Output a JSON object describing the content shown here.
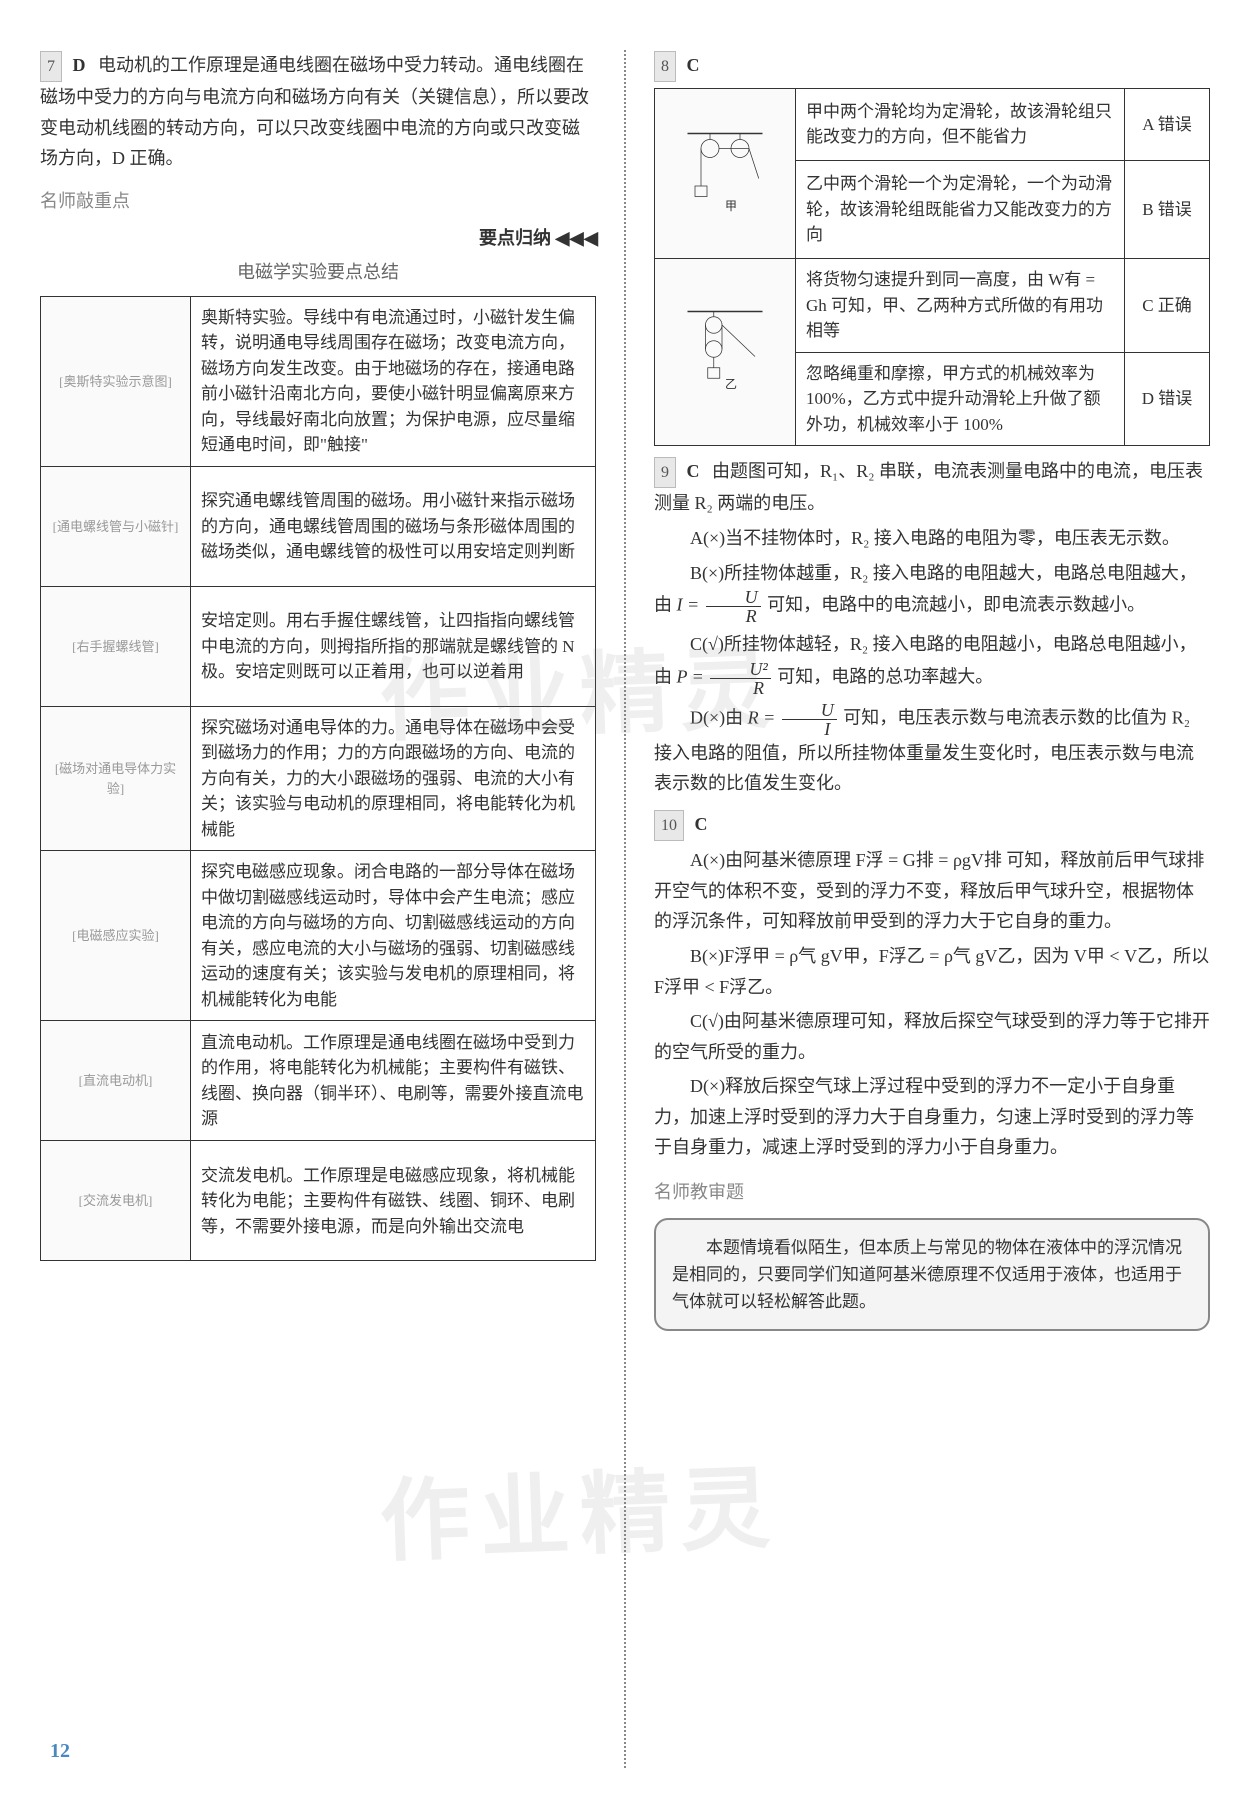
{
  "pageNumber": "12",
  "watermark": "作业精灵",
  "left": {
    "q7": {
      "num": "7",
      "ans": "D",
      "text": "电动机的工作原理是通电线圈在磁场中受力转动。通电线圈在磁场中受力的方向与电流方向和磁场方向有关（关键信息），所以要改变电动机线圈的转动方向，可以只改变线圈中电流的方向或只改变磁场方向，D 正确。"
    },
    "sectionLabel": "名师敲重点",
    "summaryLabel": "要点归纳",
    "arrows": "◀ ◀ ◀",
    "tableTitle": "电磁学实验要点总结",
    "rows": [
      {
        "imgAlt": "奥斯特实验示意图",
        "text": "奥斯特实验。导线中有电流通过时，小磁针发生偏转，说明通电导线周围存在磁场；改变电流方向，磁场方向发生改变。由于地磁场的存在，接通电路前小磁针沿南北方向，要使小磁针明显偏离原来方向，导线最好南北向放置；为保护电源，应尽量缩短通电时间，即\"触接\""
      },
      {
        "imgAlt": "通电螺线管与小磁针",
        "text": "探究通电螺线管周围的磁场。用小磁针来指示磁场的方向，通电螺线管周围的磁场与条形磁体周围的磁场类似，通电螺线管的极性可以用安培定则判断"
      },
      {
        "imgAlt": "右手握螺线管",
        "text": "安培定则。用右手握住螺线管，让四指指向螺线管中电流的方向，则拇指所指的那端就是螺线管的 N 极。安培定则既可以正着用，也可以逆着用"
      },
      {
        "imgAlt": "磁场对通电导体力实验",
        "text": "探究磁场对通电导体的力。通电导体在磁场中会受到磁场力的作用；力的方向跟磁场的方向、电流的方向有关，力的大小跟磁场的强弱、电流的大小有关；该实验与电动机的原理相同，将电能转化为机械能"
      },
      {
        "imgAlt": "电磁感应实验",
        "text": "探究电磁感应现象。闭合电路的一部分导体在磁场中做切割磁感线运动时，导体中会产生电流；感应电流的方向与磁场的方向、切割磁感线运动的方向有关，感应电流的大小与磁场的强弱、切割磁感线运动的速度有关；该实验与发电机的原理相同，将机械能转化为电能"
      },
      {
        "imgAlt": "直流电动机",
        "text": "直流电动机。工作原理是通电线圈在磁场中受到力的作用，将电能转化为机械能；主要构件有磁铁、线圈、换向器（铜半环）、电刷等，需要外接直流电源"
      },
      {
        "imgAlt": "交流发电机",
        "text": "交流发电机。工作原理是电磁感应现象，将机械能转化为电能；主要构件有磁铁、线圈、铜环、电刷等，不需要外接电源，而是向外输出交流电"
      }
    ]
  },
  "right": {
    "q8": {
      "num": "8",
      "ans": "C",
      "rows": [
        {
          "imgAlt": "定滑轮组",
          "text": "甲中两个滑轮均为定滑轮，故该滑轮组只能改变力的方向，但不能省力",
          "verdict": "A 错误"
        },
        {
          "imgAlt": "甲",
          "imgLabel": "甲",
          "text": "乙中两个滑轮一个为定滑轮，一个为动滑轮，故该滑轮组既能省力又能改变力的方向",
          "verdict": "B 错误"
        },
        {
          "imgAlt": "乙",
          "imgLabel": "乙",
          "text": "将货物匀速提升到同一高度，由 W有 = Gh 可知，甲、乙两种方式所做的有用功相等",
          "verdict": "C 正确"
        },
        {
          "text": "忽略绳重和摩擦，甲方式的机械效率为 100%，乙方式中提升动滑轮上升做了额外功，机械效率小于 100%",
          "verdict": "D 错误"
        }
      ]
    },
    "q9": {
      "num": "9",
      "ans": "C",
      "intro": "由题图可知，R₁、R₂ 串联，电流表测量电路中的电流，电压表测量 R₂ 两端的电压。",
      "optA": "A(×)当不挂物体时，R₂ 接入电路的电阻为零，电压表无示数。",
      "optB_pre": "B(×)所挂物体越重，R₂ 接入电路的电阻越大，电路总电阻越大，由",
      "optB_post": "可知，电路中的电流越小，即电流表示数越小。",
      "optC_pre": "C(√)所挂物体越轻，R₂ 接入电路的电阻越小，电路总电阻越小，由",
      "optC_post": "可知，电路的总功率越大。",
      "optD_pre": "D(×)由",
      "optD_post": "可知，电压表示数与电流表示数的比值为 R₂ 接入电路的阻值，所以所挂物体重量发生变化时，电压表示数与电流表示数的比值发生变化。"
    },
    "q10": {
      "num": "10",
      "ans": "C",
      "optA": "A(×)由阿基米德原理 F浮 = G排 = ρgV排 可知，释放前后甲气球排开空气的体积不变，受到的浮力不变，释放后甲气球升空，根据物体的浮沉条件，可知释放前甲受到的浮力大于它自身的重力。",
      "optB": "B(×)F浮甲 = ρ气 gV甲，F浮乙 = ρ气 gV乙，因为 V甲 < V乙，所以 F浮甲 < F浮乙。",
      "optC": "C(√)由阿基米德原理可知，释放后探空气球受到的浮力等于它排开的空气所受的重力。",
      "optD": "D(×)释放后探空气球上浮过程中受到的浮力不一定小于自身重力，加速上浮时受到的浮力大于自身重力，匀速上浮时受到的浮力等于自身重力，减速上浮时受到的浮力小于自身重力。"
    },
    "teacherTitle": "名师教审题",
    "teacherBox": "本题情境看似陌生，但本质上与常见的物体在液体中的浮沉情况是相同的，只要同学们知道阿基米德原理不仅适用于液体，也适用于气体就可以轻松解答此题。"
  }
}
